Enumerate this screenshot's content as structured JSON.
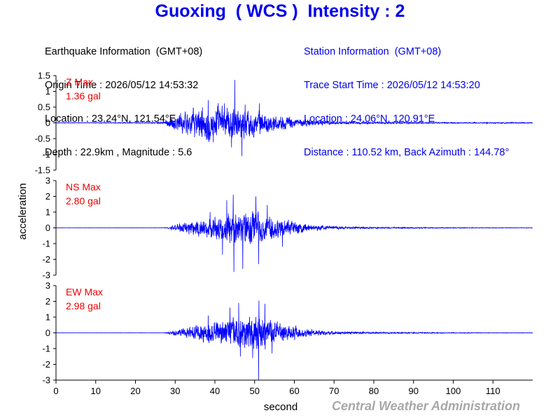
{
  "title": "Guoxing  ( WCS )  Intensity : 2",
  "earthquake_info": {
    "heading": "Earthquake Information  (GMT+08)",
    "origin_time": "Origin Time : 2026/05/12 14:53:32",
    "location": "Location : 23.24°N, 121.54°E",
    "depth_magnitude": "Depth : 22.9km , Magnitude : 5.6"
  },
  "station_info": {
    "heading": "Station Information  (GMT+08)",
    "trace_start": "Trace Start Time : 2026/05/12 14:53:20",
    "location": "Location : 24.06°N, 120.91°E",
    "distance_azimuth": "Distance : 110.52 km, Back Azimuth : 144.78°"
  },
  "footer": {
    "credit": "Central Weather Administration"
  },
  "colors": {
    "title": "#0000ee",
    "trace": "#0000ff",
    "max_label": "#ee0000",
    "credit": "#a8a8a8"
  },
  "chart_data": {
    "type": "line",
    "xlabel": "second",
    "ylabel": "acceleration",
    "xlim": [
      0,
      120
    ],
    "x_ticks": [
      0,
      10,
      20,
      30,
      40,
      50,
      60,
      70,
      80,
      90,
      100,
      110
    ],
    "grid": false,
    "series": [
      {
        "name": "Z",
        "max_label": "Z Max",
        "max_value": "1.36 gal",
        "ylim": [
          -1.5,
          1.5
        ],
        "y_ticks": [
          -1.5,
          -1,
          -0.5,
          0,
          0.5,
          1,
          1.5
        ],
        "y_tick_labels": [
          "-1.5",
          "-1",
          "-0.5",
          "0",
          "0.5",
          "1",
          "1.5"
        ],
        "envelope": {
          "x": [
            0,
            25,
            27,
            30,
            33,
            36,
            39,
            42,
            44,
            46,
            48,
            50,
            53,
            56,
            60,
            65,
            70,
            80,
            90,
            100,
            110,
            120
          ],
          "amp": [
            0.01,
            0.02,
            0.05,
            0.3,
            0.45,
            0.55,
            0.65,
            0.55,
            0.6,
            0.55,
            0.5,
            0.45,
            0.35,
            0.28,
            0.18,
            0.1,
            0.06,
            0.04,
            0.03,
            0.02,
            0.02,
            0.02
          ]
        },
        "peaks": [
          {
            "x": 45.0,
            "y": 1.36
          },
          {
            "x": 46.8,
            "y": -1.05
          },
          {
            "x": 38.3,
            "y": 0.72
          },
          {
            "x": 39.6,
            "y": -0.62
          },
          {
            "x": 42.4,
            "y": 0.62
          },
          {
            "x": 44.2,
            "y": -0.78
          },
          {
            "x": 51.2,
            "y": 0.62
          },
          {
            "x": 47.6,
            "y": 0.58
          }
        ]
      },
      {
        "name": "NS",
        "max_label": "NS Max",
        "max_value": "2.80 gal",
        "ylim": [
          -3,
          3
        ],
        "y_ticks": [
          -3,
          -2,
          -1,
          0,
          1,
          2,
          3
        ],
        "y_tick_labels": [
          "-3",
          "-2",
          "-1",
          "0",
          "1",
          "2",
          "3"
        ],
        "envelope": {
          "x": [
            0,
            27,
            28,
            30,
            33,
            36,
            39,
            42,
            44,
            46,
            48,
            50,
            52,
            55,
            58,
            62,
            66,
            70,
            80,
            90,
            100,
            110,
            120
          ],
          "amp": [
            0.005,
            0.01,
            0.05,
            0.2,
            0.45,
            0.6,
            0.8,
            1.1,
            1.3,
            1.2,
            1.1,
            1.2,
            1.0,
            0.85,
            0.6,
            0.35,
            0.2,
            0.12,
            0.06,
            0.04,
            0.03,
            0.02,
            0.02
          ]
        },
        "peaks": [
          {
            "x": 44.8,
            "y": -2.8
          },
          {
            "x": 44.6,
            "y": 2.1
          },
          {
            "x": 50.3,
            "y": 2.0
          },
          {
            "x": 47.0,
            "y": -2.6
          },
          {
            "x": 51.0,
            "y": -2.3
          },
          {
            "x": 43.0,
            "y": 1.75
          },
          {
            "x": 41.9,
            "y": -1.7
          },
          {
            "x": 53.2,
            "y": 1.45
          },
          {
            "x": 57.0,
            "y": -1.2
          },
          {
            "x": 38.8,
            "y": 1.0
          }
        ]
      },
      {
        "name": "EW",
        "max_label": "EW Max",
        "max_value": "2.98 gal",
        "ylim": [
          -3,
          3
        ],
        "y_ticks": [
          -3,
          -2,
          -1,
          0,
          1,
          2,
          3
        ],
        "y_tick_labels": [
          "-3",
          "-2",
          "-1",
          "0",
          "1",
          "2",
          "3"
        ],
        "envelope": {
          "x": [
            0,
            27,
            28,
            30,
            33,
            36,
            39,
            42,
            44,
            46,
            48,
            50,
            52,
            55,
            58,
            62,
            66,
            70,
            80,
            90,
            100,
            110,
            120
          ],
          "amp": [
            0.005,
            0.01,
            0.05,
            0.2,
            0.4,
            0.6,
            0.8,
            0.9,
            1.0,
            1.1,
            1.2,
            1.3,
            1.15,
            0.9,
            0.6,
            0.35,
            0.2,
            0.12,
            0.06,
            0.04,
            0.03,
            0.02,
            0.02
          ]
        },
        "peaks": [
          {
            "x": 51.0,
            "y": -2.98
          },
          {
            "x": 51.1,
            "y": 2.05
          },
          {
            "x": 46.0,
            "y": 1.9
          },
          {
            "x": 52.6,
            "y": 1.85
          },
          {
            "x": 49.5,
            "y": -1.6
          },
          {
            "x": 46.4,
            "y": -1.5
          },
          {
            "x": 43.8,
            "y": 1.6
          },
          {
            "x": 38.3,
            "y": 1.1
          },
          {
            "x": 54.4,
            "y": -1.3
          }
        ]
      }
    ]
  }
}
